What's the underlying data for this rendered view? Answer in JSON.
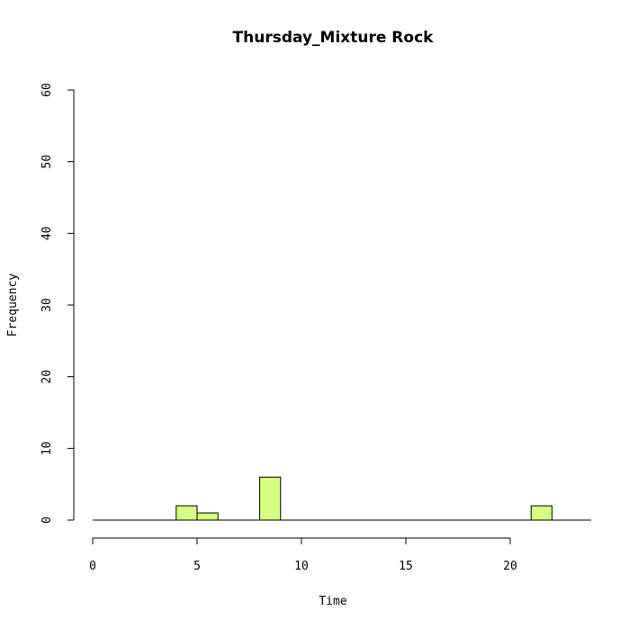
{
  "chart_data": {
    "type": "bar",
    "title": "Thursday_Mixture Rock",
    "xlabel": "Time",
    "ylabel": "Frequency",
    "xlim": [
      0,
      24
    ],
    "ylim": [
      0,
      60
    ],
    "x_ticks": [
      0,
      5,
      10,
      15,
      20
    ],
    "y_ticks": [
      0,
      10,
      20,
      30,
      40,
      50,
      60
    ],
    "bin_width": 1,
    "bins": [
      {
        "x0": 0,
        "x1": 1,
        "count": 0
      },
      {
        "x0": 1,
        "x1": 2,
        "count": 0
      },
      {
        "x0": 2,
        "x1": 3,
        "count": 0
      },
      {
        "x0": 3,
        "x1": 4,
        "count": 0
      },
      {
        "x0": 4,
        "x1": 5,
        "count": 2
      },
      {
        "x0": 5,
        "x1": 6,
        "count": 1
      },
      {
        "x0": 6,
        "x1": 7,
        "count": 0
      },
      {
        "x0": 7,
        "x1": 8,
        "count": 0
      },
      {
        "x0": 8,
        "x1": 9,
        "count": 6
      },
      {
        "x0": 9,
        "x1": 10,
        "count": 0
      },
      {
        "x0": 10,
        "x1": 11,
        "count": 0
      },
      {
        "x0": 11,
        "x1": 12,
        "count": 0
      },
      {
        "x0": 12,
        "x1": 13,
        "count": 0
      },
      {
        "x0": 13,
        "x1": 14,
        "count": 0
      },
      {
        "x0": 14,
        "x1": 15,
        "count": 0
      },
      {
        "x0": 15,
        "x1": 16,
        "count": 0
      },
      {
        "x0": 16,
        "x1": 17,
        "count": 0
      },
      {
        "x0": 17,
        "x1": 18,
        "count": 0
      },
      {
        "x0": 18,
        "x1": 19,
        "count": 0
      },
      {
        "x0": 19,
        "x1": 20,
        "count": 0
      },
      {
        "x0": 20,
        "x1": 21,
        "count": 0
      },
      {
        "x0": 21,
        "x1": 22,
        "count": 2
      },
      {
        "x0": 22,
        "x1": 23,
        "count": 0
      },
      {
        "x0": 23,
        "x1": 24,
        "count": 0
      }
    ],
    "bar_color": "#d4ff80",
    "grid": false,
    "legend": "none"
  }
}
